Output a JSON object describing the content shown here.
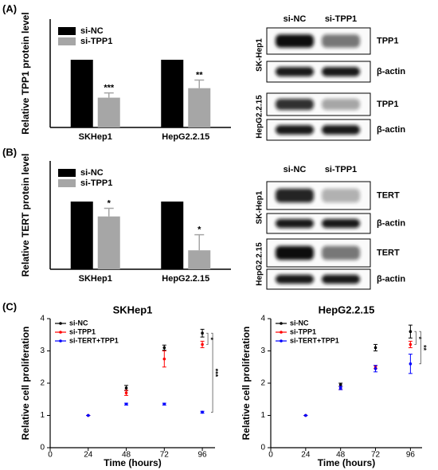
{
  "panels": [
    "(A)",
    "(B)",
    "(C)"
  ],
  "chart_data": [
    {
      "type": "bar",
      "ylabel": "Relative TPP1 protein level",
      "categories": [
        "SKHep1",
        "HepG2.2.15"
      ],
      "ylim": [
        0,
        1.6
      ],
      "series": [
        {
          "name": "si-NC",
          "color": "#000000",
          "values": [
            1,
            1
          ]
        },
        {
          "name": "si-TPP1",
          "color": "#a6a6a6",
          "values": [
            0.44,
            0.58
          ],
          "errors": [
            0.07,
            0.12
          ],
          "annotations": [
            "***",
            "**"
          ]
        }
      ]
    },
    {
      "type": "bar",
      "ylabel": "Relative TERT protein level",
      "categories": [
        "SKHep1",
        "HepG2.2.15"
      ],
      "ylim": [
        0,
        1.6
      ],
      "series": [
        {
          "name": "si-NC",
          "color": "#000000",
          "values": [
            1,
            1
          ]
        },
        {
          "name": "si-TPP1",
          "color": "#a6a6a6",
          "values": [
            0.78,
            0.28
          ],
          "errors": [
            0.12,
            0.23
          ],
          "annotations": [
            "*",
            "*"
          ]
        }
      ]
    },
    {
      "type": "line",
      "title": "SKHep1",
      "xlabel": "Time (hours)",
      "ylabel": "Relative cell proliferation",
      "x": [
        24,
        48,
        72,
        96
      ],
      "xlim": [
        0,
        104
      ],
      "xticks": [
        0,
        24,
        48,
        72,
        96
      ],
      "ylim": [
        0,
        4
      ],
      "yticks": [
        0,
        1,
        2,
        3,
        4
      ],
      "series": [
        {
          "name": "si-NC",
          "color": "#000000",
          "values": [
            1,
            1.85,
            3.1,
            3.55
          ],
          "errors": [
            0,
            0.08,
            0.08,
            0.12
          ]
        },
        {
          "name": "si-TPP1",
          "color": "#ff0000",
          "values": [
            1,
            1.7,
            2.75,
            3.2
          ],
          "errors": [
            0,
            0.08,
            0.25,
            0.1
          ]
        },
        {
          "name": "si-TERT+TPP1",
          "color": "#0000ff",
          "values": [
            1,
            1.35,
            1.35,
            1.1
          ],
          "errors": [
            0,
            0.03,
            0.03,
            0.03
          ]
        }
      ],
      "annotations": [
        "*",
        "***"
      ]
    },
    {
      "type": "line",
      "title": "HepG2.2.15",
      "xlabel": "Time (hours)",
      "ylabel": "Relative cell proliferation",
      "x": [
        24,
        48,
        72,
        96
      ],
      "xlim": [
        0,
        104
      ],
      "xticks": [
        0,
        24,
        48,
        72,
        96
      ],
      "ylim": [
        0,
        4
      ],
      "yticks": [
        0,
        1,
        2,
        3,
        4
      ],
      "series": [
        {
          "name": "si-NC",
          "color": "#000000",
          "values": [
            1,
            1.95,
            3.1,
            3.6
          ],
          "errors": [
            0,
            0.05,
            0.1,
            0.2
          ]
        },
        {
          "name": "si-TPP1",
          "color": "#ff0000",
          "values": [
            1,
            1.85,
            2.5,
            3.2
          ],
          "errors": [
            0,
            0.05,
            0.05,
            0.1
          ]
        },
        {
          "name": "si-TERT+TPP1",
          "color": "#0000ff",
          "values": [
            1,
            1.85,
            2.45,
            2.6
          ],
          "errors": [
            0,
            0.05,
            0.1,
            0.3
          ]
        }
      ],
      "annotations": [
        "*",
        "**"
      ]
    }
  ],
  "blots": [
    {
      "columns": [
        "si-NC",
        "si-TPP1"
      ],
      "groups": [
        {
          "cell_line": "SK-Hep1",
          "bands": [
            "TPP1",
            "β-actin"
          ]
        },
        {
          "cell_line": "HepG2.2.15",
          "bands": [
            "TPP1",
            "β-actin"
          ]
        }
      ]
    },
    {
      "columns": [
        "si-NC",
        "si-TPP1"
      ],
      "groups": [
        {
          "cell_line": "SK-Hep1",
          "bands": [
            "TERT",
            "β-actin"
          ]
        },
        {
          "cell_line": "HepG2.2.15",
          "bands": [
            "TERT",
            "β-actin"
          ]
        }
      ]
    }
  ]
}
